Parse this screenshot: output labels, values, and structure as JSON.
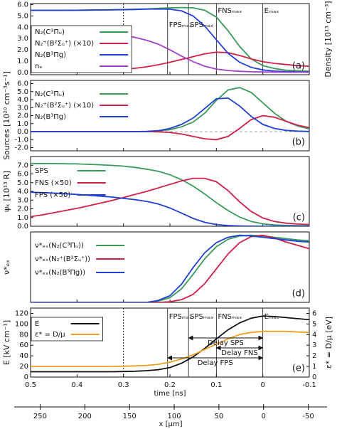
{
  "chart_data": [
    {
      "type": "line",
      "panel_label": "(a)",
      "ylabel": "Density [10¹³ cm⁻³]",
      "ylabel_side": "right",
      "x": [
        0.5,
        0.475,
        0.45,
        0.425,
        0.4,
        0.375,
        0.35,
        0.325,
        0.3,
        0.275,
        0.25,
        0.225,
        0.2,
        0.175,
        0.15,
        0.125,
        0.1,
        0.075,
        0.05,
        0.025,
        0,
        -0.025,
        -0.05,
        -0.075,
        -0.1
      ],
      "xlim": [
        0.5,
        -0.1
      ],
      "xticks": [
        0.5,
        0.4,
        0.3,
        0.2,
        0.1,
        0,
        -0.1
      ],
      "ylim": [
        -0.2,
        6.1
      ],
      "yticks": [
        {
          "value": 0,
          "label": "0.0"
        },
        {
          "value": 1,
          "label": "1.0"
        },
        {
          "value": 2,
          "label": "2.0"
        },
        {
          "value": 3,
          "label": "3.0"
        },
        {
          "value": 4,
          "label": "4.0"
        },
        {
          "value": 5,
          "label": "5.0"
        },
        {
          "value": 6,
          "label": "6.0"
        }
      ],
      "legend_box": true,
      "ref_line": 0.3,
      "markers": [
        {
          "label": "FPSₘₐₓ",
          "x": 0.205
        },
        {
          "label": "SPSₘₐₓ",
          "x": 0.16
        },
        {
          "label": "FNSₘₐₓ",
          "x": 0.1
        },
        {
          "label": "Eₘₐₓ",
          "x": 0
        }
      ],
      "series": [
        {
          "name": "N₂(C³Πᵤ)",
          "color": "#3a9a5a",
          "values": [
            5.5,
            5.5,
            5.5,
            5.5,
            5.51,
            5.52,
            5.53,
            5.55,
            5.57,
            5.6,
            5.63,
            5.67,
            5.72,
            5.75,
            5.72,
            5.5,
            4.9,
            3.7,
            2.3,
            1.2,
            0.6,
            0.35,
            0.2,
            0.15,
            0.1
          ]
        },
        {
          "name": "N₂⁺(B²Σᵤ⁺) (×10)",
          "color": "#d0204a",
          "values": [
            0.05,
            0.06,
            0.07,
            0.08,
            0.1,
            0.12,
            0.15,
            0.2,
            0.27,
            0.37,
            0.5,
            0.68,
            0.9,
            1.15,
            1.4,
            1.65,
            1.8,
            1.75,
            1.5,
            1.2,
            0.95,
            0.8,
            0.7,
            0.6,
            0.55
          ]
        },
        {
          "name": "N₂(B³Πg)",
          "color": "#1f3fd6",
          "values": [
            5.5,
            5.5,
            5.5,
            5.5,
            5.51,
            5.52,
            5.53,
            5.54,
            5.56,
            5.58,
            5.6,
            5.62,
            5.6,
            5.45,
            5.0,
            4.1,
            2.9,
            1.7,
            0.9,
            0.45,
            0.22,
            0.12,
            0.08,
            0.05,
            0.04
          ]
        },
        {
          "name": "nₑ",
          "color": "#a040c8",
          "values": [
            3.8,
            3.78,
            3.75,
            3.72,
            3.68,
            3.62,
            3.55,
            3.45,
            3.3,
            3.1,
            2.85,
            2.5,
            2.0,
            1.45,
            0.95,
            0.55,
            0.3,
            0.17,
            0.1,
            0.06,
            0.04,
            0.03,
            0.02,
            0.02,
            0.02
          ]
        }
      ]
    },
    {
      "type": "line",
      "panel_label": "(b)",
      "ylabel": "Sources [10²⁰ cm⁻³s⁻¹]",
      "x": [
        0.5,
        0.475,
        0.45,
        0.425,
        0.4,
        0.375,
        0.35,
        0.325,
        0.3,
        0.275,
        0.25,
        0.225,
        0.2,
        0.175,
        0.15,
        0.125,
        0.1,
        0.075,
        0.05,
        0.025,
        0,
        -0.025,
        -0.05,
        -0.075,
        -0.1
      ],
      "xlim": [
        0.5,
        -0.1
      ],
      "xticks": [
        0.5,
        0.4,
        0.3,
        0.2,
        0.1,
        0,
        -0.1
      ],
      "ylim": [
        -2.4,
        6.4
      ],
      "yticks": [
        {
          "value": -2,
          "label": "-2.0"
        },
        {
          "value": -1,
          "label": "-1.0"
        },
        {
          "value": 0,
          "label": "0.0"
        },
        {
          "value": 1,
          "label": "1.0"
        },
        {
          "value": 2,
          "label": "2.0"
        },
        {
          "value": 3,
          "label": "3.0"
        },
        {
          "value": 4,
          "label": "4.0"
        },
        {
          "value": 5,
          "label": "5.0"
        },
        {
          "value": 6,
          "label": "6.0"
        }
      ],
      "zero_line": true,
      "series": [
        {
          "name": "N₂(C³Πᵤ)",
          "color": "#3a9a5a",
          "values": [
            0,
            0,
            0,
            0,
            0,
            0,
            0,
            0,
            0,
            0,
            0.02,
            0.08,
            0.25,
            0.6,
            1.2,
            2.3,
            3.9,
            5.2,
            5.5,
            4.9,
            3.6,
            2.3,
            1.3,
            0.7,
            0.35
          ]
        },
        {
          "name": "N₂⁺(B²Σᵤ⁺) (×10)",
          "color": "#d0204a",
          "values": [
            0,
            0,
            0,
            0,
            0,
            0,
            0,
            0,
            0,
            0,
            0,
            -0.03,
            -0.1,
            -0.3,
            -0.6,
            -0.9,
            -1.0,
            -0.6,
            0.4,
            1.5,
            2.0,
            1.8,
            1.3,
            0.8,
            0.5
          ]
        },
        {
          "name": "N₂(B³Πg)",
          "color": "#1f3fd6",
          "values": [
            0,
            0,
            0,
            0,
            0,
            0,
            0,
            0,
            0,
            0,
            0.03,
            0.12,
            0.4,
            0.9,
            1.7,
            2.9,
            4.1,
            4.2,
            3.2,
            1.9,
            0.9,
            0.4,
            0.15,
            0.06,
            0.02
          ]
        }
      ]
    },
    {
      "type": "line",
      "panel_label": "(c)",
      "ylabel": "ψₖ [10¹³ R]",
      "x": [
        0.5,
        0.475,
        0.45,
        0.425,
        0.4,
        0.375,
        0.35,
        0.325,
        0.3,
        0.275,
        0.25,
        0.225,
        0.2,
        0.175,
        0.15,
        0.125,
        0.1,
        0.075,
        0.05,
        0.025,
        0,
        -0.025,
        -0.05,
        -0.075,
        -0.1
      ],
      "xlim": [
        0.5,
        -0.1
      ],
      "xticks": [
        0.5,
        0.4,
        0.3,
        0.2,
        0.1,
        0,
        -0.1
      ],
      "ylim": [
        0,
        8
      ],
      "yticks": [
        {
          "value": 0,
          "label": "0.0"
        },
        {
          "value": 1,
          "label": "1.0"
        },
        {
          "value": 2,
          "label": "2.0"
        },
        {
          "value": 3,
          "label": "3.0"
        },
        {
          "value": 4,
          "label": "4.0"
        },
        {
          "value": 5,
          "label": "5.0"
        },
        {
          "value": 6,
          "label": "6.0"
        },
        {
          "value": 7,
          "label": "7.0"
        }
      ],
      "series": [
        {
          "name": "SPS",
          "color": "#3a9a5a",
          "values": [
            7.2,
            7.2,
            7.19,
            7.17,
            7.15,
            7.1,
            7.05,
            6.98,
            6.9,
            6.75,
            6.55,
            6.3,
            5.9,
            5.35,
            4.6,
            3.7,
            2.7,
            1.8,
            1.05,
            0.55,
            0.28,
            0.15,
            0.1,
            0.07,
            0.05
          ]
        },
        {
          "name": "FNS (×50)",
          "color": "#d0204a",
          "values": [
            1.1,
            1.3,
            1.55,
            1.8,
            2.05,
            2.35,
            2.65,
            2.95,
            3.3,
            3.65,
            4.0,
            4.4,
            4.8,
            5.2,
            5.5,
            5.5,
            5.1,
            4.1,
            2.8,
            1.7,
            0.95,
            0.55,
            0.35,
            0.25,
            0.2
          ]
        },
        {
          "name": "FPS (×50)",
          "color": "#1f3fd6",
          "values": [
            3.9,
            3.85,
            3.8,
            3.73,
            3.65,
            3.55,
            3.45,
            3.35,
            3.2,
            3.05,
            2.85,
            2.55,
            2.1,
            1.5,
            0.9,
            0.45,
            0.2,
            0.08,
            0.03,
            0.01,
            0,
            0,
            0,
            0,
            0
          ]
        }
      ]
    },
    {
      "type": "line",
      "panel_label": "(d)",
      "ylabel": "ν*ₑₓ",
      "x": [
        0.5,
        0.475,
        0.45,
        0.425,
        0.4,
        0.375,
        0.35,
        0.325,
        0.3,
        0.275,
        0.25,
        0.225,
        0.2,
        0.175,
        0.15,
        0.125,
        0.1,
        0.075,
        0.05,
        0.025,
        0,
        -0.025,
        -0.05,
        -0.075,
        -0.1
      ],
      "xlim": [
        0.5,
        -0.1
      ],
      "xticks": [
        0.5,
        0.4,
        0.3,
        0.2,
        0.1,
        0,
        -0.1
      ],
      "ylim": [
        0,
        1.05
      ],
      "series": [
        {
          "name": "ν*ₑₓ(N₂(C³Πᵤ))",
          "color": "#3a9a5a",
          "values": [
            0,
            0,
            0,
            0,
            0,
            0,
            0,
            0,
            0,
            0,
            0,
            0.02,
            0.07,
            0.2,
            0.42,
            0.65,
            0.83,
            0.94,
            0.99,
            1.0,
            0.99,
            0.97,
            0.95,
            0.93,
            0.92
          ]
        },
        {
          "name": "ν*ₑₓ(N₂⁺(B²Σᵤ⁺))",
          "color": "#d0204a",
          "values": [
            0,
            0,
            0,
            0,
            0,
            0,
            0,
            0,
            0,
            0,
            0,
            0,
            0.01,
            0.04,
            0.12,
            0.28,
            0.5,
            0.72,
            0.89,
            0.98,
            1.0,
            0.96,
            0.9,
            0.85,
            0.8
          ]
        },
        {
          "name": "ν*ₑₓ(N₂(B³Πg))",
          "color": "#1f3fd6",
          "values": [
            0,
            0,
            0,
            0,
            0,
            0,
            0,
            0,
            0,
            0,
            0,
            0.03,
            0.1,
            0.27,
            0.52,
            0.74,
            0.89,
            0.97,
            1.0,
            0.99,
            0.97,
            0.95,
            0.93,
            0.91,
            0.9
          ]
        }
      ]
    },
    {
      "type": "line",
      "panel_label": "(e)",
      "ylabel": "E [kV cm⁻¹]",
      "y2label": "ε* = D/μ [eV]",
      "xlabel": "time [ns]",
      "x": [
        0.5,
        0.475,
        0.45,
        0.425,
        0.4,
        0.375,
        0.35,
        0.325,
        0.3,
        0.275,
        0.25,
        0.225,
        0.2,
        0.175,
        0.15,
        0.125,
        0.1,
        0.075,
        0.05,
        0.025,
        0,
        -0.025,
        -0.05,
        -0.075,
        -0.1
      ],
      "xlim": [
        0.5,
        -0.1
      ],
      "xticks": [
        0.5,
        0.4,
        0.3,
        0.2,
        0.1,
        0,
        -0.1
      ],
      "ylim": [
        0,
        130
      ],
      "yticks": [
        0,
        20,
        40,
        60,
        80,
        100,
        120
      ],
      "y2lim": [
        0,
        6.5
      ],
      "y2ticks": [
        0,
        1,
        2,
        3,
        4,
        5,
        6
      ],
      "x2label": "x [μm]",
      "x2lim": [
        279,
        -71
      ],
      "x2ticks": [
        250,
        200,
        150,
        100,
        50,
        0,
        -50
      ],
      "legend_box": true,
      "ref_line": 0.3,
      "markers": [
        {
          "label": "FPSₘₐₓ",
          "x": 0.205
        },
        {
          "label": "SPSₘₐₓ",
          "x": 0.16
        },
        {
          "label": "FNSₘₐₓ",
          "x": 0.1
        },
        {
          "label": "Eₘₐₓ",
          "x": 0
        }
      ],
      "delays": [
        {
          "label": "Delay SPS",
          "from": 0.16,
          "to": 0
        },
        {
          "label": "Delay FNS",
          "from": 0.1,
          "to": 0
        },
        {
          "label": "Delay FPS",
          "from": 0.205,
          "to": 0
        }
      ],
      "series": [
        {
          "name": "E",
          "color": "#111111",
          "values": [
            10,
            10,
            10,
            10,
            10,
            10,
            10,
            10,
            10.5,
            11,
            12,
            14,
            18,
            26,
            38,
            54,
            72,
            89,
            102,
            111,
            115,
            114,
            112,
            110,
            108
          ]
        },
        {
          "name": "ε* = D/μ",
          "color": "#f0a020",
          "axis": "y2",
          "values": [
            1,
            1,
            1,
            1,
            1,
            1,
            1,
            1,
            1.02,
            1.05,
            1.1,
            1.2,
            1.4,
            1.7,
            2.1,
            2.6,
            3.1,
            3.6,
            4.0,
            4.2,
            4.3,
            4.3,
            4.3,
            4.25,
            4.2
          ]
        }
      ]
    }
  ]
}
